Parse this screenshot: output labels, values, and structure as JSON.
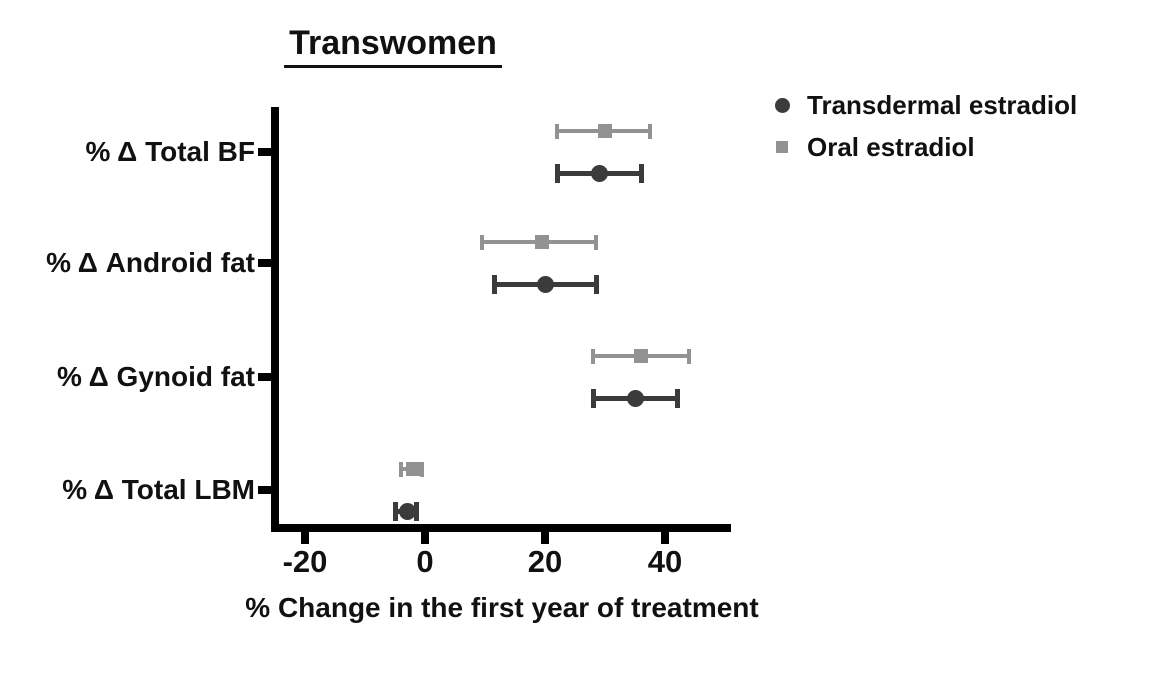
{
  "title": "Transwomen",
  "x_axis": {
    "label": "% Change in the first year of treatment",
    "tick_labels": [
      "-20",
      "0",
      "20",
      "40"
    ]
  },
  "legend": {
    "items": [
      "Transdermal estradiol",
      "Oral estradiol"
    ]
  },
  "colors": {
    "transdermal": "#3b3b3b",
    "oral": "#929292",
    "axis": "#000000",
    "text": "#111111"
  },
  "chart_data": {
    "type": "scatter",
    "orientation": "horizontal",
    "title": "Transwomen",
    "xlabel": "% Change in the first year of treatment",
    "xlim": [
      -25.5,
      51
    ],
    "xticks": [
      -20,
      0,
      20,
      40
    ],
    "grid": false,
    "legend_position": "right-top",
    "categories": [
      "% Δ Total BF",
      "% Δ Android fat",
      "% Δ Gynoid fat",
      "% Δ Total LBM"
    ],
    "series": [
      {
        "name": "Transdermal estradiol",
        "marker": "circle",
        "color": "#3b3b3b",
        "values": [
          29,
          20,
          35,
          -3
        ],
        "ci_low": [
          22,
          11.5,
          28,
          -5
        ],
        "ci_high": [
          36,
          28.5,
          42,
          -1.5
        ]
      },
      {
        "name": "Oral estradiol",
        "marker": "square",
        "color": "#929292",
        "values": [
          30,
          19.5,
          36,
          -2
        ],
        "ci_low": [
          22,
          9.5,
          28,
          -4
        ],
        "ci_high": [
          37.5,
          28.5,
          44,
          -0.5
        ]
      }
    ]
  }
}
